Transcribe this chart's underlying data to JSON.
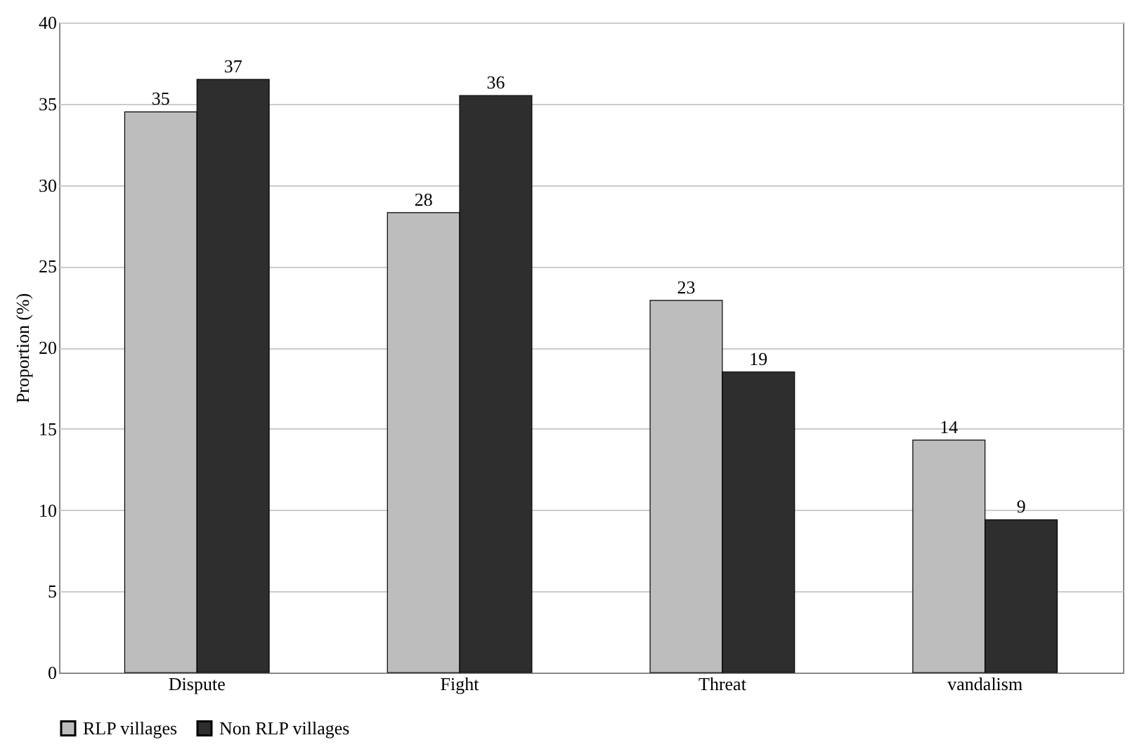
{
  "chart_data": {
    "type": "bar",
    "ylabel": "Proportion (%)",
    "categories": [
      "Dispute",
      "Fight",
      "Threat",
      "vandalism"
    ],
    "series": [
      {
        "name": "RLP villages",
        "color": "#bdbdbd",
        "values": [
          34.5,
          28.3,
          22.9,
          14.3
        ],
        "value_labels": [
          "35",
          "28",
          "23",
          "14"
        ]
      },
      {
        "name": "Non RLP villages",
        "color": "#2e2e2e",
        "values": [
          36.5,
          35.5,
          18.5,
          9.4
        ],
        "value_labels": [
          "37",
          "36",
          "19",
          "9"
        ]
      }
    ],
    "ylim": [
      0,
      40
    ],
    "yticks": [
      0,
      5,
      10,
      15,
      20,
      25,
      30,
      35,
      40
    ],
    "grid": "y",
    "legend": "bottom"
  }
}
